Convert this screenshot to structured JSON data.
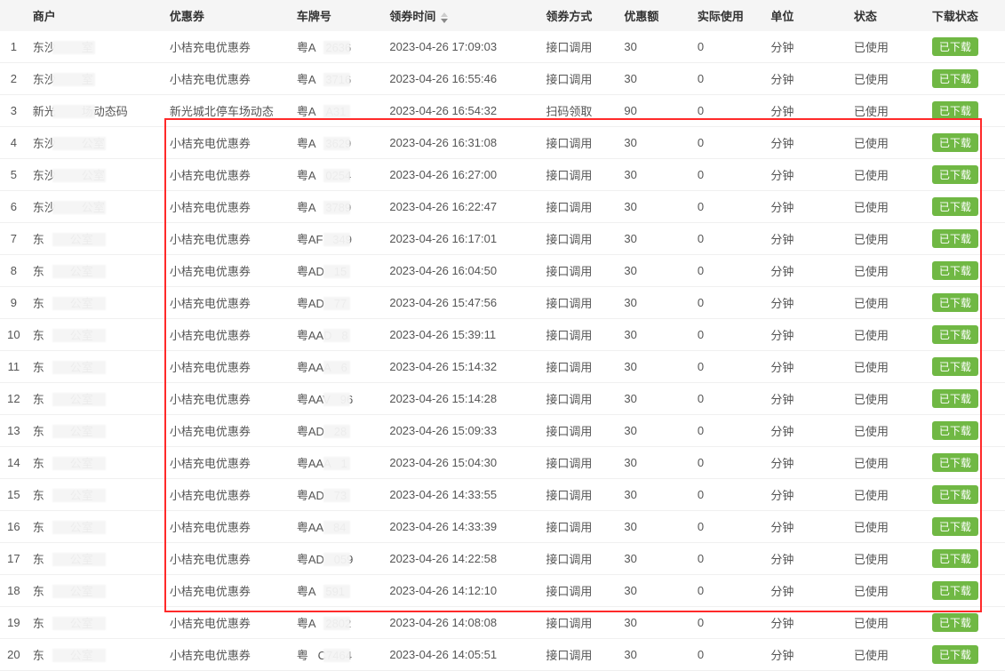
{
  "columns": {
    "merchant": "商户",
    "coupon": "优惠券",
    "plate": "车牌号",
    "receive_time": "领券时间",
    "method": "领券方式",
    "amount": "优惠额",
    "actual_use": "实际使用",
    "unit": "单位",
    "status": "状态",
    "download_status": "下载状态"
  },
  "badge_label": "已下载",
  "badge_color": "#70b844",
  "highlight_border_color": "#ff2a2a",
  "header_bg": "#f5f5f5",
  "rows": [
    {
      "idx": 1,
      "merchant_prefix": "东沙",
      "merchant_suffix": "室",
      "coupon": "小桔充电优惠券",
      "plate_prefix": "粤A",
      "plate_suffix": "2636",
      "time": "2023-04-26 17:09:03",
      "method": "接口调用",
      "amount": "30",
      "actual": "0",
      "unit": "分钟",
      "status": "已使用"
    },
    {
      "idx": 2,
      "merchant_prefix": "东沙",
      "merchant_suffix": "室",
      "coupon": "小桔充电优惠券",
      "plate_prefix": "粤A",
      "plate_suffix": "3716",
      "time": "2023-04-26 16:55:46",
      "method": "接口调用",
      "amount": "30",
      "actual": "0",
      "unit": "分钟",
      "status": "已使用"
    },
    {
      "idx": 3,
      "merchant_prefix": "新光",
      "merchant_suffix": "场动态码",
      "coupon": "新光城北停车场动态",
      "plate_prefix": "粤A",
      "plate_suffix": "A31",
      "time": "2023-04-26 16:54:32",
      "method": "扫码领取",
      "amount": "90",
      "actual": "0",
      "unit": "分钟",
      "status": "已使用"
    },
    {
      "idx": 4,
      "merchant_prefix": "东沙",
      "merchant_suffix": "公室",
      "coupon": "小桔充电优惠券",
      "plate_prefix": "粤A",
      "plate_suffix": "3629",
      "time": "2023-04-26 16:31:08",
      "method": "接口调用",
      "amount": "30",
      "actual": "0",
      "unit": "分钟",
      "status": "已使用"
    },
    {
      "idx": 5,
      "merchant_prefix": "东沙",
      "merchant_suffix": "公室",
      "coupon": "小桔充电优惠券",
      "plate_prefix": "粤A",
      "plate_suffix": "0254",
      "time": "2023-04-26 16:27:00",
      "method": "接口调用",
      "amount": "30",
      "actual": "0",
      "unit": "分钟",
      "status": "已使用"
    },
    {
      "idx": 6,
      "merchant_prefix": "东沙",
      "merchant_suffix": "公室",
      "coupon": "小桔充电优惠券",
      "plate_prefix": "粤A",
      "plate_suffix": "3789",
      "time": "2023-04-26 16:22:47",
      "method": "接口调用",
      "amount": "30",
      "actual": "0",
      "unit": "分钟",
      "status": "已使用"
    },
    {
      "idx": 7,
      "merchant_prefix": "东",
      "merchant_suffix": "公室",
      "coupon": "小桔充电优惠券",
      "plate_prefix": "粤AF",
      "plate_suffix": "349",
      "time": "2023-04-26 16:17:01",
      "method": "接口调用",
      "amount": "30",
      "actual": "0",
      "unit": "分钟",
      "status": "已使用"
    },
    {
      "idx": 8,
      "merchant_prefix": "东",
      "merchant_suffix": "公室",
      "coupon": "小桔充电优惠券",
      "plate_prefix": "粤AD",
      "plate_suffix": "15",
      "time": "2023-04-26 16:04:50",
      "method": "接口调用",
      "amount": "30",
      "actual": "0",
      "unit": "分钟",
      "status": "已使用"
    },
    {
      "idx": 9,
      "merchant_prefix": "东",
      "merchant_suffix": "公室",
      "coupon": "小桔充电优惠券",
      "plate_prefix": "粤AD",
      "plate_suffix": "77",
      "time": "2023-04-26 15:47:56",
      "method": "接口调用",
      "amount": "30",
      "actual": "0",
      "unit": "分钟",
      "status": "已使用"
    },
    {
      "idx": 10,
      "merchant_prefix": "东",
      "merchant_suffix": "公室",
      "coupon": "小桔充电优惠券",
      "plate_prefix": "粤AAD",
      "plate_suffix": "8",
      "time": "2023-04-26 15:39:11",
      "method": "接口调用",
      "amount": "30",
      "actual": "0",
      "unit": "分钟",
      "status": "已使用"
    },
    {
      "idx": 11,
      "merchant_prefix": "东",
      "merchant_suffix": "公室",
      "coupon": "小桔充电优惠券",
      "plate_prefix": "粤AAA",
      "plate_suffix": "6",
      "time": "2023-04-26 15:14:32",
      "method": "接口调用",
      "amount": "30",
      "actual": "0",
      "unit": "分钟",
      "status": "已使用"
    },
    {
      "idx": 12,
      "merchant_prefix": "东",
      "merchant_suffix": "公室",
      "coupon": "小桔充电优惠券",
      "plate_prefix": "粤AAV",
      "plate_suffix": "96",
      "time": "2023-04-26 15:14:28",
      "method": "接口调用",
      "amount": "30",
      "actual": "0",
      "unit": "分钟",
      "status": "已使用"
    },
    {
      "idx": 13,
      "merchant_prefix": "东",
      "merchant_suffix": "公室",
      "coupon": "小桔充电优惠券",
      "plate_prefix": "粤AD",
      "plate_suffix": "28",
      "time": "2023-04-26 15:09:33",
      "method": "接口调用",
      "amount": "30",
      "actual": "0",
      "unit": "分钟",
      "status": "已使用"
    },
    {
      "idx": 14,
      "merchant_prefix": "东",
      "merchant_suffix": "公室",
      "coupon": "小桔充电优惠券",
      "plate_prefix": "粤AAA",
      "plate_suffix": "1",
      "time": "2023-04-26 15:04:30",
      "method": "接口调用",
      "amount": "30",
      "actual": "0",
      "unit": "分钟",
      "status": "已使用"
    },
    {
      "idx": 15,
      "merchant_prefix": "东",
      "merchant_suffix": "公室",
      "coupon": "小桔充电优惠券",
      "plate_prefix": "粤AD",
      "plate_suffix": "73",
      "time": "2023-04-26 14:33:55",
      "method": "接口调用",
      "amount": "30",
      "actual": "0",
      "unit": "分钟",
      "status": "已使用"
    },
    {
      "idx": 16,
      "merchant_prefix": "东",
      "merchant_suffix": "公室",
      "coupon": "小桔充电优惠券",
      "plate_prefix": "粤AA",
      "plate_suffix": "84",
      "time": "2023-04-26 14:33:39",
      "method": "接口调用",
      "amount": "30",
      "actual": "0",
      "unit": "分钟",
      "status": "已使用"
    },
    {
      "idx": 17,
      "merchant_prefix": "东",
      "merchant_suffix": "公室",
      "coupon": "小桔充电优惠券",
      "plate_prefix": "粤AD",
      "plate_suffix": "059",
      "time": "2023-04-26 14:22:58",
      "method": "接口调用",
      "amount": "30",
      "actual": "0",
      "unit": "分钟",
      "status": "已使用"
    },
    {
      "idx": 18,
      "merchant_prefix": "东",
      "merchant_suffix": "公室",
      "coupon": "小桔充电优惠券",
      "plate_prefix": "粤A",
      "plate_suffix": "591",
      "time": "2023-04-26 14:12:10",
      "method": "接口调用",
      "amount": "30",
      "actual": "0",
      "unit": "分钟",
      "status": "已使用"
    },
    {
      "idx": 19,
      "merchant_prefix": "东",
      "merchant_suffix": "公室",
      "coupon": "小桔充电优惠券",
      "plate_prefix": "粤A",
      "plate_suffix": "2802",
      "time": "2023-04-26 14:08:08",
      "method": "接口调用",
      "amount": "30",
      "actual": "0",
      "unit": "分钟",
      "status": "已使用"
    },
    {
      "idx": 20,
      "merchant_prefix": "东",
      "merchant_suffix": "公室",
      "coupon": "小桔充电优惠券",
      "plate_prefix": "粤",
      "plate_suffix": "C7464",
      "time": "2023-04-26 14:05:51",
      "method": "接口调用",
      "amount": "30",
      "actual": "0",
      "unit": "分钟",
      "status": "已使用"
    }
  ]
}
